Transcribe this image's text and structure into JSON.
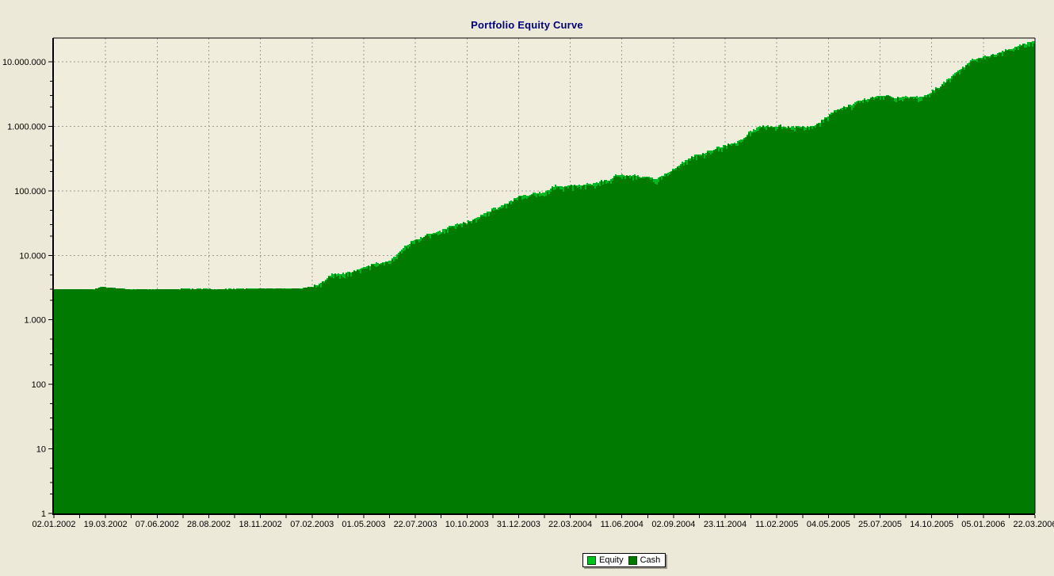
{
  "page": {
    "background": "#ECE9D8"
  },
  "chart": {
    "title": "Portfolio Equity Curve",
    "title_color": "#000080",
    "plot_bg": "#F0EDDC",
    "grid_color": "#9C9C94",
    "axis_color": "#000000",
    "tick_label_color": "#000000"
  },
  "legend": {
    "items": [
      {
        "label": "Equity",
        "color": "#00C41E"
      },
      {
        "label": "Cash",
        "color": "#017A01"
      }
    ]
  },
  "chart_data": {
    "type": "area",
    "title": "Portfolio Equity Curve",
    "y_scale": "log",
    "ylim": [
      1,
      25000000
    ],
    "grid": true,
    "legend_position": "bottom-center",
    "x_tick_labels": [
      "02.01.2002",
      "19.03.2002",
      "07.06.2002",
      "28.08.2002",
      "18.11.2002",
      "07.02.2003",
      "01.05.2003",
      "22.07.2003",
      "10.10.2003",
      "31.12.2003",
      "22.03.2004",
      "11.06.2004",
      "02.09.2004",
      "23.11.2004",
      "11.02.2005",
      "04.05.2005",
      "25.07.2005",
      "14.10.2005",
      "05.01.2006",
      "22.03.2006"
    ],
    "y_tick_labels": [
      "1",
      "10",
      "100",
      "1.000",
      "10.000",
      "100.000",
      "1.000.000",
      "10.000.000"
    ],
    "series": [
      {
        "name": "Equity",
        "color": "#00B824",
        "start_value": 3000,
        "end_value": 23000000,
        "anchors": [
          {
            "t": 0.0,
            "date": "02.01.2002",
            "value": 3000
          },
          {
            "t": 0.04,
            "date": "20.02.2002",
            "value": 3000
          },
          {
            "t": 0.048,
            "date": "10.03.2002",
            "value": 3250
          },
          {
            "t": 0.06,
            "date": "28.03.2002",
            "value": 3150
          },
          {
            "t": 0.075,
            "date": "20.04.2002",
            "value": 3000
          },
          {
            "t": 0.25,
            "date": "26.01.2003",
            "value": 3050
          },
          {
            "t": 0.268,
            "date": "22.02.2003",
            "value": 3400
          },
          {
            "t": 0.282,
            "date": "05.03.2003",
            "value": 5000
          },
          {
            "t": 0.3,
            "date": "02.04.2003",
            "value": 5600
          },
          {
            "t": 0.32,
            "date": "10.05.2003",
            "value": 7000
          },
          {
            "t": 0.34,
            "date": "10.06.2003",
            "value": 8200
          },
          {
            "t": 0.356,
            "date": "04.07.2003",
            "value": 13000
          },
          {
            "t": 0.381,
            "date": "11.08.2003",
            "value": 21000
          },
          {
            "t": 0.4,
            "date": "09.09.2003",
            "value": 26000
          },
          {
            "t": 0.42,
            "date": "10.10.2003",
            "value": 33000
          },
          {
            "t": 0.445,
            "date": "17.11.2003",
            "value": 48000
          },
          {
            "t": 0.47,
            "date": "26.12.2003",
            "value": 72000
          },
          {
            "t": 0.493,
            "date": "30.01.2004",
            "value": 95000
          },
          {
            "t": 0.51,
            "date": "25.02.2004",
            "value": 115000
          },
          {
            "t": 0.526,
            "date": "20.03.2004",
            "value": 135000
          },
          {
            "t": 0.55,
            "date": "28.04.2004",
            "value": 140000
          },
          {
            "t": 0.574,
            "date": "04.06.2004",
            "value": 180000
          },
          {
            "t": 0.606,
            "date": "23.07.2004",
            "value": 175000
          },
          {
            "t": 0.614,
            "date": "04.08.2004",
            "value": 152000
          },
          {
            "t": 0.625,
            "date": "21.08.2004",
            "value": 200000
          },
          {
            "t": 0.65,
            "date": "29.09.2004",
            "value": 320000
          },
          {
            "t": 0.671,
            "date": "31.10.2004",
            "value": 420000
          },
          {
            "t": 0.685,
            "date": "22.11.2004",
            "value": 520000
          },
          {
            "t": 0.702,
            "date": "18.12.2004",
            "value": 700000
          },
          {
            "t": 0.718,
            "date": "12.01.2005",
            "value": 1050000
          },
          {
            "t": 0.773,
            "date": "06.04.2005",
            "value": 1100000
          },
          {
            "t": 0.79,
            "date": "02.05.2005",
            "value": 1700000
          },
          {
            "t": 0.816,
            "date": "12.06.2005",
            "value": 2500000
          },
          {
            "t": 0.84,
            "date": "19.07.2005",
            "value": 3100000
          },
          {
            "t": 0.862,
            "date": "21.08.2005",
            "value": 2900000
          },
          {
            "t": 0.889,
            "date": "02.10.2005",
            "value": 3000000
          },
          {
            "t": 0.9,
            "date": "19.10.2005",
            "value": 4000000
          },
          {
            "t": 0.913,
            "date": "08.11.2005",
            "value": 5500000
          },
          {
            "t": 0.937,
            "date": "15.12.2005",
            "value": 11000000
          },
          {
            "t": 0.97,
            "date": "04.02.2006",
            "value": 16000000
          },
          {
            "t": 1.0,
            "date": "22.03.2006",
            "value": 23000000
          }
        ]
      },
      {
        "name": "Cash",
        "color": "#017A01",
        "note": "Tracks Equity from just below; equal to Equity in the flat period, 1-8% below it during the uptrend (bright fringe = Equity above Cash)."
      }
    ]
  }
}
